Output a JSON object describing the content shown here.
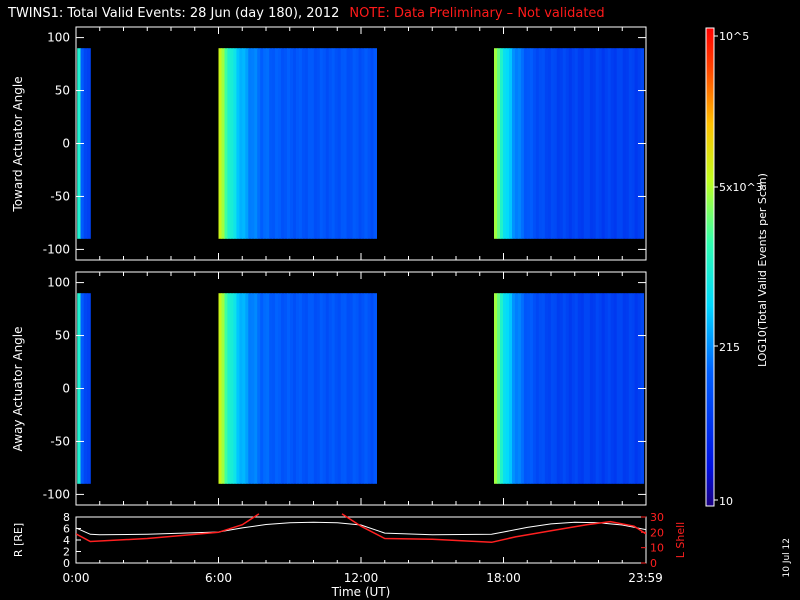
{
  "title": "TWINS1: Total Valid Events: 28 Jun (day 180), 2012",
  "note": "NOTE: Data Preliminary – Not validated",
  "stamp": "10 Jul 12",
  "chart_data": [
    {
      "type": "heatmap",
      "panel": "toward",
      "ylabel": "Toward Actuator Angle",
      "ylim": [
        -110,
        110
      ],
      "yticks": [
        100,
        50,
        0,
        -50,
        -100
      ],
      "xlim_hours": [
        0,
        24
      ],
      "data_angle_range": [
        -90,
        90
      ],
      "blocks": [
        {
          "start": 0.05,
          "end": 0.6,
          "level": 0.22,
          "edge": 0.5
        },
        {
          "start": 6.0,
          "end": 12.65,
          "level": 0.25,
          "edge": 0.7
        },
        {
          "start": 17.6,
          "end": 23.9,
          "level": 0.2,
          "edge": 0.65
        }
      ]
    },
    {
      "type": "heatmap",
      "panel": "away",
      "ylabel": "Away Actuator Angle",
      "ylim": [
        -110,
        110
      ],
      "yticks": [
        100,
        50,
        0,
        -50,
        -100
      ],
      "xlim_hours": [
        0,
        24
      ],
      "data_angle_range": [
        -90,
        90
      ],
      "blocks": [
        {
          "start": 0.05,
          "end": 0.6,
          "level": 0.22,
          "edge": 0.5
        },
        {
          "start": 6.0,
          "end": 12.65,
          "level": 0.25,
          "edge": 0.7
        },
        {
          "start": 17.6,
          "end": 23.9,
          "level": 0.2,
          "edge": 0.65
        }
      ]
    },
    {
      "type": "line",
      "panel": "orbit",
      "ylabel": "R [RE]",
      "y2label": "L Shell",
      "xlabel": "Time (UT)",
      "xticks": [
        "0:00",
        "6:00",
        "12:00",
        "18:00",
        "23:59"
      ],
      "xtick_hours": [
        0,
        6,
        12,
        18,
        23.98
      ],
      "ylim": [
        0,
        8
      ],
      "yticks": [
        0,
        2,
        4,
        6,
        8
      ],
      "y2lim": [
        0,
        30
      ],
      "y2ticks": [
        0,
        10,
        20,
        30
      ],
      "series": [
        {
          "axis": "left",
          "color": "#ffffff",
          "x": [
            0,
            0.6,
            1,
            3,
            6,
            7,
            8,
            9,
            10,
            11,
            12,
            13,
            15,
            17.5,
            18,
            19,
            20,
            21,
            22,
            23,
            24
          ],
          "y": [
            6.1,
            5.0,
            4.9,
            5.0,
            5.4,
            6.1,
            6.7,
            7.0,
            7.1,
            7.0,
            6.6,
            5.2,
            4.9,
            5.0,
            5.4,
            6.2,
            6.8,
            7.1,
            7.0,
            6.6,
            5.8
          ]
        },
        {
          "axis": "right",
          "color": "#ff2020",
          "x": [
            0,
            0.6,
            3,
            6,
            7,
            7.7
          ],
          "y": [
            19,
            14,
            16,
            20,
            25,
            32
          ]
        },
        {
          "axis": "right",
          "color": "#ff2020",
          "x": [
            11.2,
            12,
            13,
            15,
            17.5,
            18.5,
            20,
            21.5,
            22.5,
            23.5,
            24
          ],
          "y": [
            32,
            24,
            16,
            15.5,
            13.5,
            17,
            21,
            25,
            27,
            24,
            19
          ]
        }
      ]
    }
  ],
  "colorbar": {
    "label": "LOG10(Total Valid Events per Scan)",
    "ticks": [
      "10^5",
      "5x10^3",
      "215",
      "10"
    ]
  }
}
